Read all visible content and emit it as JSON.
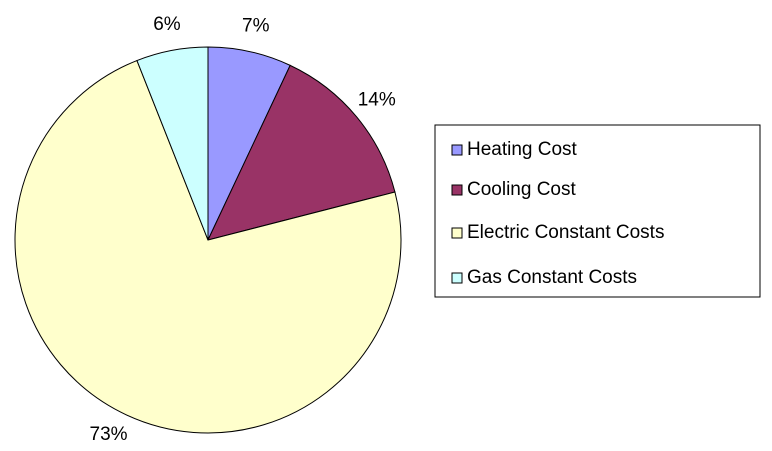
{
  "chart_data": {
    "type": "pie",
    "categories": [
      "Heating Cost",
      "Cooling Cost",
      "Electric Constant Costs",
      "Gas Constant Costs"
    ],
    "values": [
      7,
      14,
      73,
      6
    ],
    "value_labels": [
      "7%",
      "14%",
      "73%",
      "6%"
    ],
    "colors": [
      "#9999ff",
      "#993366",
      "#ffffcc",
      "#ccffff"
    ],
    "legend": "right"
  }
}
